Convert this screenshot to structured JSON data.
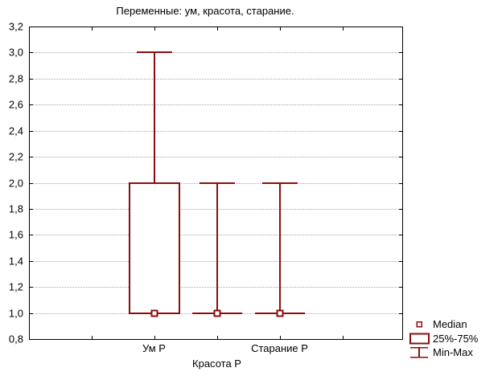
{
  "chart_data": {
    "type": "boxplot",
    "title": "Переменные: ум, красота, старание.",
    "categories": [
      "Ум Р",
      "Красота Р",
      "Старание Р"
    ],
    "series": [
      {
        "name": "Ум Р",
        "median": 1.0,
        "q1": 1.0,
        "q3": 2.0,
        "min": 1.0,
        "max": 3.0
      },
      {
        "name": "Красота Р",
        "median": 1.0,
        "q1": 1.0,
        "q3": 1.0,
        "min": 1.0,
        "max": 2.0
      },
      {
        "name": "Старание Р",
        "median": 1.0,
        "q1": 1.0,
        "q3": 1.0,
        "min": 1.0,
        "max": 2.0
      }
    ],
    "ylim": [
      0.8,
      3.2
    ],
    "ytick_step": 0.2,
    "ytick_labels": [
      "3,2",
      "3,0",
      "2,8",
      "2,6",
      "2,4",
      "2,2",
      "2,0",
      "1,8",
      "1,6",
      "1,4",
      "1,2",
      "1,0",
      "0,8"
    ],
    "grid": "horizontal-dotted",
    "legend_position": "bottom-right",
    "legend": [
      {
        "icon": "median-marker",
        "label": "Median"
      },
      {
        "icon": "box",
        "label": "25%-75%"
      },
      {
        "icon": "whisker",
        "label": "Min-Max"
      }
    ],
    "colors": {
      "background": "#ffffff",
      "axis": "#000000",
      "text": "#000000",
      "grid": "#a6a6a6",
      "series_line": "#8b0e0e",
      "marker_fill": "#ffffff"
    }
  }
}
